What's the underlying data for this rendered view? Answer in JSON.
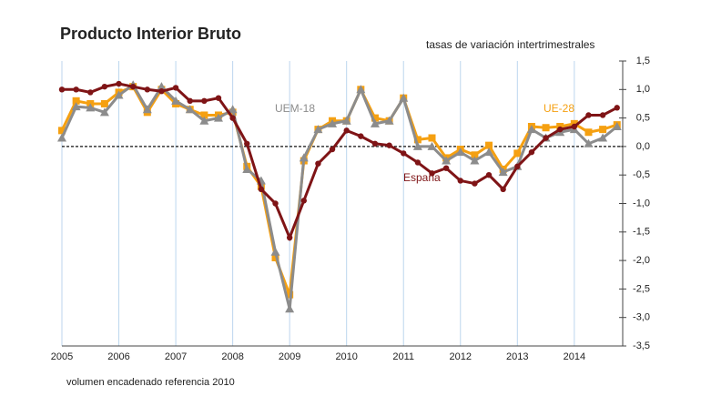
{
  "chart_data": {
    "type": "line",
    "title": "Producto Interior Bruto",
    "subtitle": "tasas de variación intertrimestrales",
    "note": "volumen encadenado referencia 2010",
    "x": [
      2005,
      2005.25,
      2005.5,
      2005.75,
      2006,
      2006.25,
      2006.5,
      2006.75,
      2007,
      2007.25,
      2007.5,
      2007.75,
      2008,
      2008.25,
      2008.5,
      2008.75,
      2009,
      2009.25,
      2009.5,
      2009.75,
      2010,
      2010.25,
      2010.5,
      2010.75,
      2011,
      2011.25,
      2011.5,
      2011.75,
      2012,
      2012.25,
      2012.5,
      2012.75,
      2013,
      2013.25,
      2013.5,
      2013.75,
      2014,
      2014.25,
      2014.5,
      2014.75
    ],
    "xlim": [
      2005,
      2014.85
    ],
    "xticks": [
      2005,
      2006,
      2007,
      2008,
      2009,
      2010,
      2011,
      2012,
      2013,
      2014
    ],
    "ylim": [
      -3.5,
      1.5
    ],
    "yticks": [
      {
        "value": -3.5,
        "label": "-3,5"
      },
      {
        "value": -3,
        "label": "-3,0"
      },
      {
        "value": -2.5,
        "label": "-2,5"
      },
      {
        "value": -2,
        "label": "-2,0"
      },
      {
        "value": -1.5,
        "label": "-1,5"
      },
      {
        "value": -1,
        "label": "-1,0"
      },
      {
        "value": -0.5,
        "label": "-0,5"
      },
      {
        "value": 0,
        "label": "0,0"
      },
      {
        "value": 0.5,
        "label": "0,5"
      },
      {
        "value": 1,
        "label": "1,0"
      },
      {
        "value": 1.5,
        "label": "1,5"
      }
    ],
    "y_axis_side": "right",
    "grid": true,
    "series": [
      {
        "name": "España",
        "color": "#7f1416",
        "marker": "circle",
        "values": [
          1.0,
          1.0,
          0.95,
          1.05,
          1.1,
          1.05,
          1.0,
          0.97,
          1.03,
          0.8,
          0.8,
          0.85,
          0.5,
          0.05,
          -0.75,
          -1.0,
          -1.6,
          -0.95,
          -0.3,
          -0.05,
          0.28,
          0.18,
          0.05,
          0.02,
          -0.12,
          -0.28,
          -0.47,
          -0.38,
          -0.6,
          -0.65,
          -0.5,
          -0.75,
          -0.35,
          -0.1,
          0.15,
          0.3,
          0.35,
          0.55,
          0.55,
          0.68
        ]
      },
      {
        "name": "UE-28",
        "color": "#f5a011",
        "marker": "square",
        "values": [
          0.28,
          0.8,
          0.75,
          0.75,
          0.95,
          1.05,
          0.6,
          1.0,
          0.75,
          0.65,
          0.55,
          0.55,
          0.6,
          -0.35,
          -0.7,
          -1.95,
          -2.6,
          -0.25,
          0.3,
          0.45,
          0.45,
          1.0,
          0.5,
          0.45,
          0.85,
          0.12,
          0.15,
          -0.2,
          -0.05,
          -0.15,
          0.02,
          -0.4,
          -0.12,
          0.35,
          0.33,
          0.35,
          0.4,
          0.25,
          0.3,
          0.38
        ]
      },
      {
        "name": "UEM-18",
        "color": "#8c8c8c",
        "marker": "triangle",
        "values": [
          0.15,
          0.7,
          0.68,
          0.6,
          0.9,
          1.08,
          0.65,
          1.05,
          0.8,
          0.65,
          0.45,
          0.5,
          0.65,
          -0.4,
          -0.6,
          -1.85,
          -2.85,
          -0.2,
          0.3,
          0.4,
          0.45,
          1.0,
          0.4,
          0.45,
          0.85,
          0.0,
          0.0,
          -0.25,
          -0.1,
          -0.25,
          -0.1,
          -0.45,
          -0.35,
          0.3,
          0.15,
          0.25,
          0.3,
          0.05,
          0.15,
          0.35
        ]
      }
    ]
  }
}
